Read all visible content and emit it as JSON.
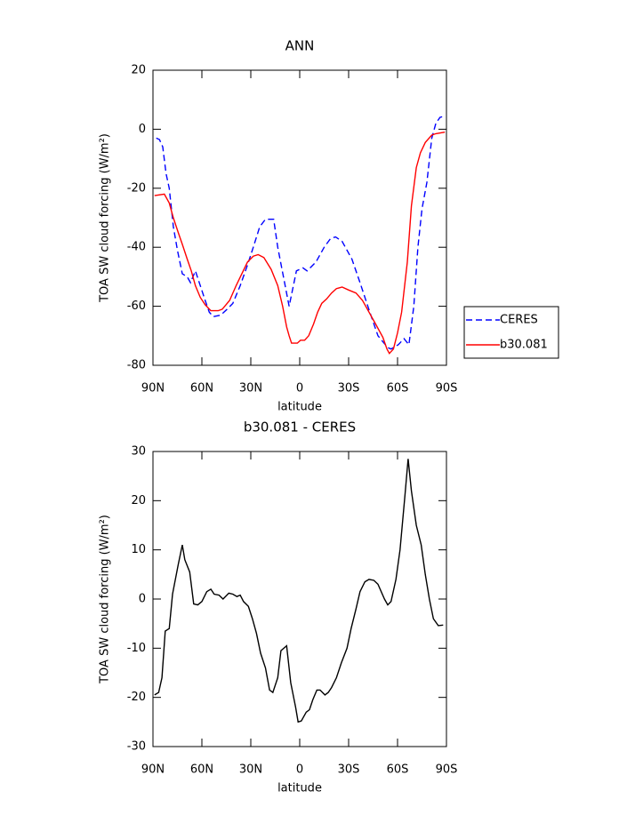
{
  "chart_data": [
    {
      "type": "line",
      "title": "ANN",
      "xlabel": "latitude",
      "ylabel": "TOA SW cloud forcing (W/m²)",
      "xlim": [
        90,
        -90
      ],
      "xticks": [
        {
          "value": 90,
          "label": "90N"
        },
        {
          "value": 60,
          "label": "60N"
        },
        {
          "value": 30,
          "label": "30N"
        },
        0,
        {
          "value": -30,
          "label": "30S"
        },
        {
          "value": -60,
          "label": "60S"
        },
        {
          "value": -90,
          "label": "90S"
        }
      ],
      "ylim": [
        -80,
        20
      ],
      "yticks": [
        -80,
        -60,
        -40,
        -20,
        0,
        20
      ],
      "legend": "right",
      "series": [
        {
          "name": "CERES",
          "color": "#0000ff",
          "style": "dashed",
          "x": [
            88,
            86,
            84,
            82,
            80,
            77.5,
            75,
            72,
            69,
            67,
            64,
            61,
            58,
            55.5,
            53,
            48.5,
            44.5,
            41,
            36.5,
            32,
            28.5,
            24.5,
            21,
            16,
            13.5,
            10,
            6.5,
            2,
            -2,
            -4.5,
            -10,
            -15,
            -19,
            -22,
            -26,
            -32,
            -37,
            -43,
            -48,
            -54,
            -56,
            -60.5,
            -64,
            -67,
            -70,
            -72.5,
            -75,
            -78,
            -81,
            -83.5,
            -86,
            -89
          ],
          "values": [
            -3,
            -3.5,
            -6,
            -15,
            -20,
            -33,
            -41,
            -49,
            -50,
            -52,
            -48,
            -53,
            -58,
            -62,
            -63.5,
            -63,
            -61,
            -59,
            -53,
            -46,
            -40,
            -33,
            -30.5,
            -30.5,
            -40,
            -50,
            -60,
            -48,
            -47,
            -48,
            -45,
            -40,
            -37,
            -36.5,
            -38,
            -44,
            -52,
            -62,
            -70,
            -74,
            -74.5,
            -73,
            -71,
            -73,
            -60,
            -40,
            -27,
            -18,
            -3,
            2,
            4,
            4.5
          ]
        },
        {
          "name": "b30.081",
          "color": "#ff0000",
          "style": "solid",
          "x": [
            89,
            83,
            80,
            77.5,
            74.5,
            72,
            69,
            66.5,
            64,
            61,
            58,
            54.5,
            50,
            47.5,
            43,
            39,
            35.5,
            32,
            28.5,
            25.5,
            22,
            17.5,
            13.5,
            10.5,
            8,
            6.5,
            5,
            1.5,
            -0.5,
            -3,
            -5.5,
            -8.5,
            -11,
            -13.5,
            -16.5,
            -19.5,
            -22.5,
            -26,
            -30,
            -34.5,
            -38.5,
            -42.5,
            -46.5,
            -51,
            -53.5,
            -55,
            -57.5,
            -60,
            -62.5,
            -66,
            -68.5,
            -71.5,
            -74,
            -77,
            -81,
            -83.5,
            -89
          ],
          "values": [
            -22.5,
            -22,
            -25,
            -30,
            -35,
            -39,
            -44,
            -48,
            -53,
            -57,
            -59.5,
            -61.5,
            -61.5,
            -61,
            -58,
            -53,
            -49,
            -45,
            -43,
            -42.5,
            -43.5,
            -47.5,
            -53,
            -60,
            -67,
            -70,
            -72.5,
            -72.5,
            -71.5,
            -71.5,
            -70,
            -66,
            -62,
            -59,
            -57.5,
            -55.5,
            -54,
            -53.5,
            -54.5,
            -55.5,
            -58,
            -62,
            -66,
            -70.5,
            -74.5,
            -76,
            -74.5,
            -69,
            -62,
            -45,
            -26,
            -13,
            -8,
            -4.5,
            -2,
            -1.5,
            -1
          ]
        }
      ]
    },
    {
      "type": "line",
      "title": "b30.081 - CERES",
      "xlabel": "latitude",
      "ylabel": "TOA SW cloud forcing (W/m²)",
      "xlim": [
        90,
        -90
      ],
      "xticks": [
        {
          "value": 90,
          "label": "90N"
        },
        {
          "value": 60,
          "label": "60N"
        },
        {
          "value": 30,
          "label": "30N"
        },
        0,
        {
          "value": -30,
          "label": "30S"
        },
        {
          "value": -60,
          "label": "60S"
        },
        {
          "value": -90,
          "label": "90S"
        }
      ],
      "ylim": [
        -30,
        30
      ],
      "yticks": [
        -30,
        -20,
        -10,
        0,
        10,
        20,
        30
      ],
      "series": [
        {
          "color": "#000000",
          "style": "solid",
          "x": [
            89,
            86.5,
            84.5,
            82.5,
            80,
            78,
            74.5,
            72,
            70.5,
            67.5,
            65,
            62.5,
            60,
            57,
            54.5,
            52.5,
            49.5,
            47,
            43.5,
            41,
            38.5,
            36.5,
            34.5,
            31.5,
            29,
            26.5,
            24,
            21,
            18.5,
            16.5,
            13.5,
            11.5,
            8,
            5.5,
            2.5,
            1,
            -1,
            -4,
            -6,
            -8,
            -10.5,
            -12.5,
            -15.5,
            -17.5,
            -19.5,
            -22.5,
            -25.5,
            -29,
            -31.5,
            -34.5,
            -37,
            -40,
            -42.5,
            -45.5,
            -48,
            -52,
            -54,
            -56,
            -59,
            -61.5,
            -64.5,
            -66.5,
            -68.5,
            -71.5,
            -74.5,
            -77,
            -79.5,
            -82,
            -85,
            -88
          ],
          "values": [
            -19.5,
            -19,
            -16,
            -6.5,
            -6,
            1,
            7,
            11,
            8,
            5.5,
            -1,
            -1.2,
            -0.5,
            1.5,
            2,
            1,
            0.8,
            0,
            1.2,
            1,
            0.5,
            0.8,
            -0.5,
            -1.5,
            -4,
            -7,
            -11,
            -14,
            -18.5,
            -19,
            -16,
            -10.5,
            -9.5,
            -17,
            -22,
            -25,
            -24.8,
            -23,
            -22.5,
            -20.5,
            -18.5,
            -18.5,
            -19.5,
            -19,
            -18,
            -16,
            -13,
            -10,
            -6,
            -2,
            1.5,
            3.5,
            4,
            3.8,
            3,
            0,
            -1.2,
            -0.5,
            4,
            10,
            21,
            28.5,
            22,
            15,
            11,
            5,
            0,
            -4,
            -5.4,
            -5.3
          ]
        }
      ]
    }
  ]
}
